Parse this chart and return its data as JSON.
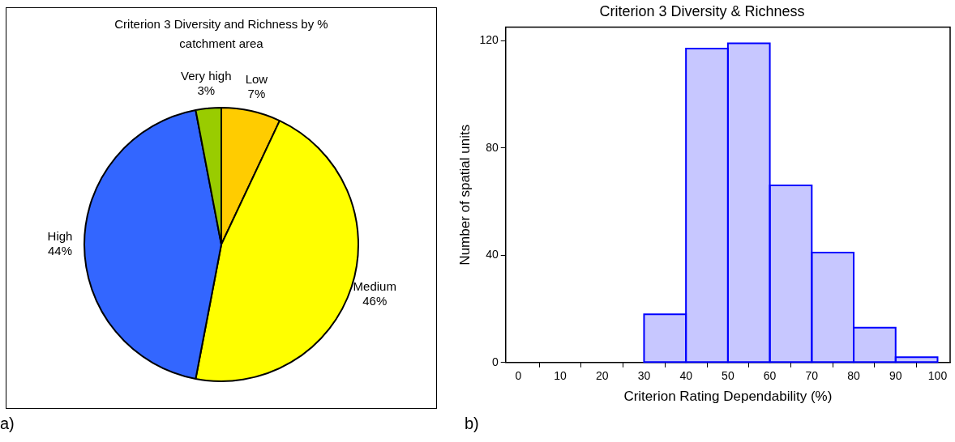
{
  "chart_data": [
    {
      "type": "pie",
      "title": "Criterion 3 Diversity and Richness by % catchment area",
      "categories": [
        "Low",
        "Medium",
        "High",
        "Very high"
      ],
      "values": [
        7,
        46,
        44,
        3
      ],
      "colors": [
        "#ffcc00",
        "#ffff00",
        "#3366ff",
        "#99cc00"
      ],
      "value_labels": [
        "7%",
        "46%",
        "44%",
        "3%"
      ],
      "legend": false,
      "annotations": [
        "a)"
      ]
    },
    {
      "type": "histogram",
      "title": "Criterion 3 Diversity & Richness",
      "xlabel": "Criterion Rating Dependability (%)",
      "ylabel": "Number of spatial units",
      "bins": [
        0,
        10,
        20,
        30,
        40,
        50,
        60,
        70,
        80,
        90,
        100
      ],
      "values": [
        0,
        0,
        0,
        18,
        117,
        119,
        66,
        41,
        13,
        2
      ],
      "color": "#0000ff",
      "xlim": [
        -3,
        103
      ],
      "xticks": [
        0,
        10,
        20,
        30,
        40,
        50,
        60,
        70,
        80,
        90,
        100
      ],
      "ylim": [
        0,
        125
      ],
      "yticks": [
        0,
        40,
        80,
        120
      ],
      "grid": false,
      "legend": false,
      "annotations": [
        "b)"
      ]
    }
  ]
}
